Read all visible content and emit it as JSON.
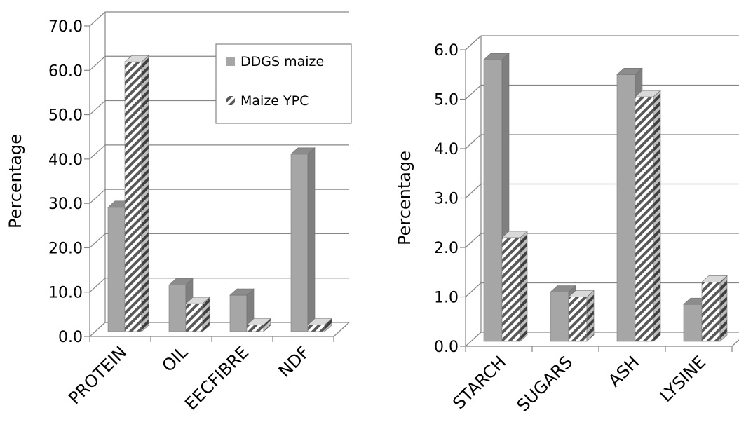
{
  "chart_data": [
    {
      "type": "bar",
      "categories": [
        "PROTEIN",
        "OIL",
        "EECFIBRE",
        "NDF"
      ],
      "series": [
        {
          "name": "DDGS maize",
          "values": [
            28.0,
            10.5,
            8.2,
            40.0
          ]
        },
        {
          "name": "Maize YPC",
          "values": [
            60.8,
            6.3,
            1.5,
            1.5
          ]
        }
      ],
      "ylabel": "Percentage",
      "ylim": [
        0,
        70
      ],
      "yticks": [
        "0.0",
        "10.0",
        "20.0",
        "30.0",
        "40.0",
        "50.0",
        "60.0",
        "70.0"
      ],
      "grid": true,
      "legend": "top-right",
      "colors": {
        "DDGS maize": "#a6a6a6",
        "Maize YPC": "hatched gray/white"
      }
    },
    {
      "type": "bar",
      "categories": [
        "STARCH",
        "SUGARS",
        "ASH",
        "LYSINE"
      ],
      "series": [
        {
          "name": "DDGS maize",
          "values": [
            5.7,
            1.0,
            5.4,
            0.75
          ]
        },
        {
          "name": "Maize YPC",
          "values": [
            2.1,
            0.9,
            4.95,
            1.2
          ]
        }
      ],
      "ylabel": "Percentage",
      "ylim": [
        0,
        6
      ],
      "yticks": [
        "0.0",
        "1.0",
        "2.0",
        "3.0",
        "4.0",
        "5.0",
        "6.0"
      ],
      "grid": true,
      "legend": "none"
    }
  ]
}
